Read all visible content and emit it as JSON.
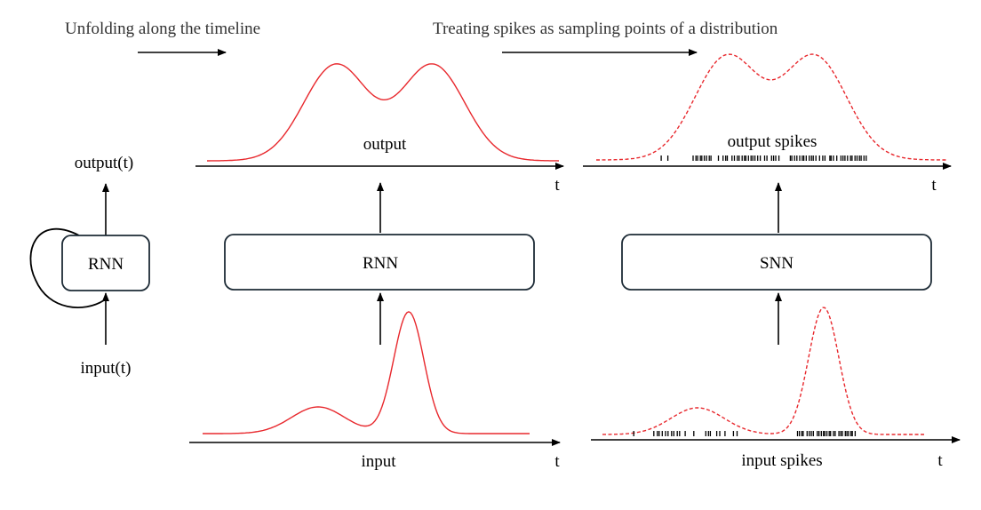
{
  "captions": {
    "unfold": "Unfolding along the timeline",
    "treat": "Treating spikes as sampling points of a distribution"
  },
  "compact": {
    "output_label": "output(t)",
    "input_label": "input(t)",
    "box_label": "RNN"
  },
  "rnn_unfolded": {
    "box_label": "RNN",
    "output_label": "output",
    "input_label": "input",
    "time_top": "t",
    "time_bottom": "t"
  },
  "snn": {
    "box_label": "SNN",
    "output_label": "output spikes",
    "input_label": "input spikes",
    "time_top": "t",
    "time_bottom": "t"
  },
  "colors": {
    "curve": "#e8282d",
    "box_stroke": "#1d2b36",
    "caption_text": "#333333"
  }
}
